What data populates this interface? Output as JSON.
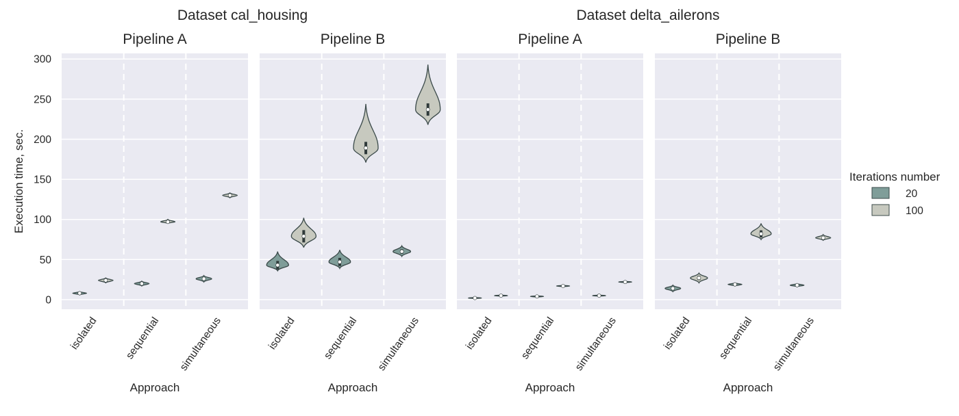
{
  "dataset_titles": [
    "Dataset cal_housing",
    "Dataset delta_ailerons"
  ],
  "panel_titles": [
    "Pipeline A",
    "Pipeline B",
    "Pipeline A",
    "Pipeline B"
  ],
  "axes": {
    "ylabel": "Execution time, sec.",
    "xlabel": "Approach",
    "yticks": [
      0,
      50,
      100,
      150,
      200,
      250,
      300
    ],
    "ylim": [
      -12,
      307
    ],
    "categories": [
      "isolated",
      "sequential",
      "simultaneous"
    ]
  },
  "legend": {
    "title": "Iterations number",
    "placement": "right",
    "items": [
      {
        "label": "20",
        "color": "#7f9d99"
      },
      {
        "label": "100",
        "color": "#c7c9bf"
      }
    ]
  },
  "colors": {
    "panel_bg": "#eaeaf2",
    "grid": "#ffffff",
    "outline": "#3b4a4a",
    "series_20": "#7f9d99",
    "series_100": "#c7c9bf"
  },
  "chart_data": [
    {
      "type": "violin",
      "dataset": "cal_housing",
      "pipeline": "Pipeline A",
      "categories": [
        "isolated",
        "sequential",
        "simultaneous"
      ],
      "series": [
        {
          "name": "20",
          "medians": [
            8,
            20,
            26
          ],
          "min": [
            6,
            17,
            22
          ],
          "max": [
            10,
            23,
            30
          ]
        },
        {
          "name": "100",
          "medians": [
            24,
            97,
            130
          ],
          "min": [
            21,
            95,
            127
          ],
          "max": [
            27,
            100,
            133
          ]
        }
      ],
      "ylim": [
        -12,
        307
      ]
    },
    {
      "type": "violin",
      "dataset": "cal_housing",
      "pipeline": "Pipeline B",
      "categories": [
        "isolated",
        "sequential",
        "simultaneous"
      ],
      "series": [
        {
          "name": "20",
          "medians": [
            43,
            47,
            60
          ],
          "min": [
            36,
            39,
            54
          ],
          "max": [
            60,
            62,
            67
          ]
        },
        {
          "name": "100",
          "medians": [
            79,
            189,
            237
          ],
          "min": [
            65,
            171,
            218
          ],
          "max": [
            102,
            244,
            293
          ]
        }
      ],
      "ylim": [
        -12,
        307
      ]
    },
    {
      "type": "violin",
      "dataset": "delta_ailerons",
      "pipeline": "Pipeline A",
      "categories": [
        "isolated",
        "sequential",
        "simultaneous"
      ],
      "series": [
        {
          "name": "20",
          "medians": [
            2,
            4,
            5
          ],
          "min": [
            1,
            3,
            4
          ],
          "max": [
            3,
            5,
            6
          ]
        },
        {
          "name": "100",
          "medians": [
            5,
            17,
            22
          ],
          "min": [
            4,
            16,
            21
          ],
          "max": [
            6,
            18,
            23
          ]
        }
      ],
      "ylim": [
        -12,
        307
      ]
    },
    {
      "type": "violin",
      "dataset": "delta_ailerons",
      "pipeline": "Pipeline B",
      "categories": [
        "isolated",
        "sequential",
        "simultaneous"
      ],
      "series": [
        {
          "name": "20",
          "medians": [
            14,
            19,
            18
          ],
          "min": [
            10,
            17,
            16
          ],
          "max": [
            18,
            21,
            20
          ]
        },
        {
          "name": "100",
          "medians": [
            27,
            82,
            77
          ],
          "min": [
            21,
            75,
            74
          ],
          "max": [
            33,
            95,
            81
          ]
        }
      ],
      "ylim": [
        -12,
        307
      ]
    }
  ]
}
